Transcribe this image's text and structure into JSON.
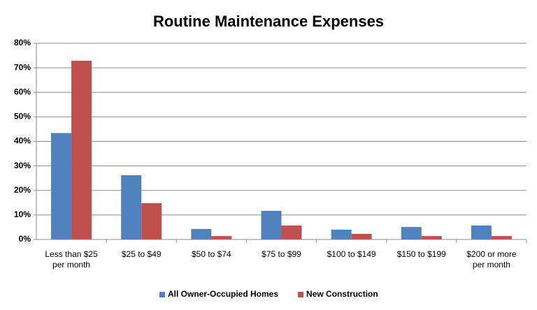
{
  "chart_data": {
    "type": "bar",
    "title": "Routine Maintenance Expenses",
    "categories": [
      "Less than $25 per month",
      "$25 to $49",
      "$50 to $74",
      "$75 to $99",
      "$100 to $149",
      "$150 to $199",
      "$200 or more per month"
    ],
    "series": [
      {
        "name": "All Owner-Occupied Homes",
        "color": "#4f81bd",
        "values": [
          43.4,
          26.2,
          4.3,
          11.7,
          4.0,
          5.1,
          5.7
        ]
      },
      {
        "name": "New Construction",
        "color": "#c0504d",
        "values": [
          72.9,
          14.8,
          1.4,
          5.7,
          2.3,
          1.4,
          1.4
        ]
      }
    ],
    "ylim": [
      0,
      80
    ],
    "yticks": [
      {
        "value": 0,
        "label": "0%"
      },
      {
        "value": 10,
        "label": "10%"
      },
      {
        "value": 20,
        "label": "20%"
      },
      {
        "value": 30,
        "label": "30%"
      },
      {
        "value": 40,
        "label": "40%"
      },
      {
        "value": 50,
        "label": "50%"
      },
      {
        "value": 60,
        "label": "60%"
      },
      {
        "value": 70,
        "label": "70%"
      },
      {
        "value": 80,
        "label": "80%"
      }
    ],
    "grid": true,
    "legend": "bottom"
  }
}
